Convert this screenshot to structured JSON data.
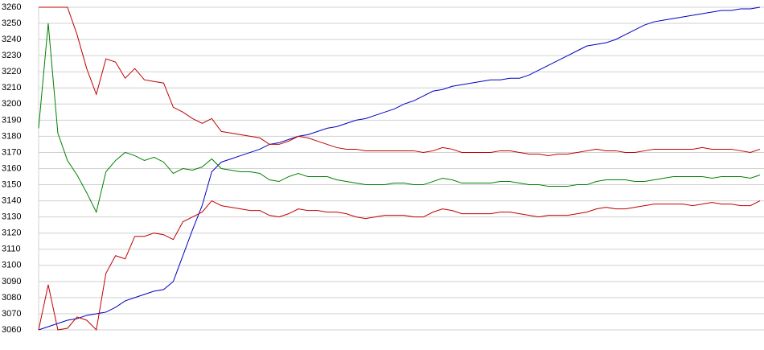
{
  "chart_data": {
    "type": "line",
    "categories": [
      null,
      null,
      null,
      null,
      null,
      null,
      null,
      null,
      null,
      null,
      null,
      null,
      null,
      null,
      null,
      null,
      null,
      null,
      null,
      null,
      null,
      null,
      null,
      null,
      null,
      null,
      null,
      null,
      null,
      null,
      null,
      null,
      null,
      null,
      null,
      null,
      null,
      null,
      null,
      null,
      null,
      null,
      null,
      null,
      null,
      null,
      null,
      null,
      null,
      null,
      null,
      null,
      null,
      null,
      null,
      null,
      null,
      null,
      null,
      null,
      null,
      null,
      null,
      null,
      null,
      null,
      null,
      null,
      null,
      null,
      null,
      null,
      null,
      null,
      null,
      null
    ],
    "ylim": [
      3060,
      3260
    ],
    "yticks": [
      3060,
      3070,
      3080,
      3090,
      3100,
      3110,
      3120,
      3130,
      3140,
      3150,
      3160,
      3170,
      3180,
      3190,
      3200,
      3210,
      3220,
      3230,
      3240,
      3250,
      3260
    ],
    "grid": true,
    "series": [
      {
        "color": "#0000c0",
        "values": [
          3060,
          3062,
          3064,
          3066,
          3067,
          3069,
          3070,
          3071,
          3074,
          3078,
          3080,
          3082,
          3084,
          3085,
          3090,
          3106,
          3122,
          3137,
          3158,
          3164,
          3166,
          3168,
          3170,
          3172,
          3175,
          3176,
          3178,
          3180,
          3181,
          3183,
          3185,
          3186,
          3188,
          3190,
          3191,
          3193,
          3195,
          3197,
          3200,
          3202,
          3205,
          3208,
          3209,
          3211,
          3212,
          3213,
          3214,
          3215,
          3215,
          3216,
          3216,
          3218,
          3221,
          3224,
          3227,
          3230,
          3233,
          3236,
          3237,
          3238,
          3240,
          3243,
          3246,
          3249,
          3251,
          3252,
          3253,
          3254,
          3255,
          3256,
          3257,
          3258,
          3258,
          3259,
          3259,
          3260
        ]
      },
      {
        "color": "#008000",
        "values": [
          3185,
          3250,
          3182,
          3165,
          3156,
          3145,
          3133,
          3158,
          3165,
          3170,
          3168,
          3165,
          3167,
          3164,
          3157,
          3160,
          3159,
          3161,
          3166,
          3160,
          3159,
          3158,
          3158,
          3157,
          3153,
          3152,
          3155,
          3157,
          3155,
          3155,
          3155,
          3153,
          3152,
          3151,
          3150,
          3150,
          3150,
          3151,
          3151,
          3150,
          3150,
          3152,
          3154,
          3153,
          3151,
          3151,
          3151,
          3151,
          3152,
          3152,
          3151,
          3150,
          3150,
          3149,
          3149,
          3149,
          3150,
          3150,
          3152,
          3153,
          3153,
          3153,
          3152,
          3152,
          3153,
          3154,
          3155,
          3155,
          3155,
          3155,
          3154,
          3155,
          3155,
          3155,
          3154,
          3156
        ]
      },
      {
        "color": "#c00000",
        "values": [
          3260,
          3260,
          3260,
          3260,
          3243,
          3222,
          3206,
          3228,
          3226,
          3216,
          3222,
          3215,
          3214,
          3213,
          3198,
          3195,
          3191,
          3188,
          3191,
          3183,
          3182,
          3181,
          3180,
          3179,
          3175,
          3175,
          3177,
          3180,
          3179,
          3177,
          3175,
          3173,
          3172,
          3172,
          3171,
          3171,
          3171,
          3171,
          3171,
          3171,
          3170,
          3171,
          3173,
          3172,
          3170,
          3170,
          3170,
          3170,
          3171,
          3171,
          3170,
          3169,
          3169,
          3168,
          3169,
          3169,
          3170,
          3171,
          3172,
          3171,
          3171,
          3170,
          3170,
          3171,
          3172,
          3172,
          3172,
          3172,
          3172,
          3173,
          3172,
          3172,
          3172,
          3171,
          3170,
          3172
        ]
      },
      {
        "color": "#c00000",
        "values": [
          3060,
          3088,
          3060,
          3061,
          3068,
          3066,
          3060,
          3095,
          3106,
          3104,
          3118,
          3118,
          3120,
          3119,
          3116,
          3127,
          3130,
          3133,
          3140,
          3137,
          3136,
          3135,
          3134,
          3134,
          3131,
          3130,
          3132,
          3135,
          3134,
          3134,
          3133,
          3133,
          3132,
          3130,
          3129,
          3130,
          3131,
          3131,
          3131,
          3130,
          3130,
          3133,
          3135,
          3134,
          3132,
          3132,
          3132,
          3132,
          3133,
          3133,
          3132,
          3131,
          3130,
          3131,
          3131,
          3131,
          3132,
          3133,
          3135,
          3136,
          3135,
          3135,
          3136,
          3137,
          3138,
          3138,
          3138,
          3138,
          3137,
          3138,
          3139,
          3138,
          3138,
          3137,
          3137,
          3140
        ]
      }
    ]
  }
}
